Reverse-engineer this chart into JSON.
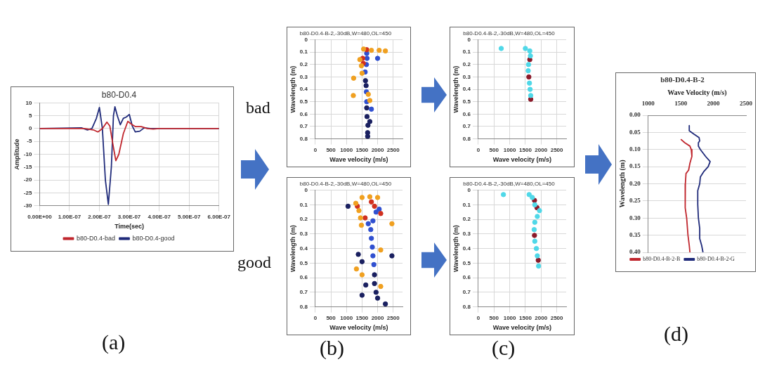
{
  "chart_data": [
    {
      "type": "line",
      "title": "b80-D0.4",
      "xlabel": "Time(sec)",
      "ylabel": "Amplitude",
      "xlim": [
        0,
        6e-07
      ],
      "xticks": [
        {
          "value": 0,
          "label": "0.00E+00"
        },
        {
          "value": 1e-07,
          "label": "1.00E-07"
        },
        {
          "value": 2e-07,
          "label": "2.00E-07"
        },
        {
          "value": 3e-07,
          "label": "3.00E-07"
        },
        {
          "value": 4e-07,
          "label": "4.00E-07"
        },
        {
          "value": 5e-07,
          "label": "5.00E-07"
        },
        {
          "value": 6e-07,
          "label": "6.00E-07"
        }
      ],
      "ylim": [
        -30,
        10
      ],
      "yticks": [
        -30,
        -25,
        -20,
        -15,
        -10,
        -5,
        0,
        5,
        10
      ],
      "grid": true,
      "legend": "bottom",
      "annotations": [
        "(a)"
      ],
      "series": [
        {
          "name": "b80-D0.4-bad",
          "color": "#c0262d",
          "x": [
            0,
            1.5e-07,
            1.8e-07,
            1.95e-07,
            2.1e-07,
            2.25e-07,
            2.35e-07,
            2.45e-07,
            2.55e-07,
            2.65e-07,
            2.8e-07,
            2.95e-07,
            3.1e-07,
            3.2e-07,
            3.4e-07,
            3.6e-07,
            3.8e-07,
            4e-07,
            6e-07
          ],
          "values": [
            0,
            0,
            -0.5,
            -1.3,
            0,
            2.5,
            1,
            -6,
            -12.5,
            -10,
            -2,
            2.8,
            1.5,
            0.8,
            0.8,
            0,
            -0.2,
            0,
            0
          ]
        },
        {
          "name": "b80-D0.4-good",
          "color": "#1f2a7a",
          "x": [
            0,
            1.4e-07,
            1.6e-07,
            1.75e-07,
            1.9e-07,
            2e-07,
            2.1e-07,
            2.2e-07,
            2.3e-07,
            2.4e-07,
            2.47e-07,
            2.52e-07,
            2.6e-07,
            2.7e-07,
            2.8e-07,
            2.9e-07,
            3e-07,
            3.1e-07,
            3.2e-07,
            3.35e-07,
            3.5e-07,
            3.7e-07,
            6e-07
          ],
          "values": [
            0,
            0.3,
            -0.5,
            0,
            4,
            8.2,
            0,
            -20,
            -29.5,
            -15,
            5,
            8.5,
            5,
            1.5,
            4,
            4.5,
            5.5,
            1,
            -1.3,
            -1,
            0.3,
            0,
            0
          ]
        }
      ]
    },
    {
      "type": "scatter",
      "title": "b80-D0.4-B-2,-30dB,W=480,OL=450",
      "xlabel": "Wave velocity (m/s)",
      "ylabel": "Wavelength (m)",
      "xlim": [
        0,
        2800
      ],
      "xticks": [
        0,
        500,
        1000,
        1500,
        2000,
        2500
      ],
      "ylim": [
        0.8,
        0
      ],
      "yticks": [
        0,
        0.1,
        0.2,
        0.3,
        0.4,
        0.5,
        0.6,
        0.7,
        0.8
      ],
      "grid": true,
      "marker": "circle",
      "annotations": [
        "bad"
      ],
      "series": [
        {
          "color": "#f0a020",
          "x": [
            1550,
            1800,
            2050,
            2250,
            1430,
            1480,
            1500,
            1230,
            1220,
            1700,
            1750
          ],
          "values": [
            0.075,
            0.085,
            0.085,
            0.09,
            0.16,
            0.21,
            0.27,
            0.31,
            0.45,
            0.44,
            0.49
          ]
        },
        {
          "color": "#d03020",
          "x": [
            1650,
            1520,
            1540
          ],
          "values": [
            0.08,
            0.15,
            0.19
          ]
        },
        {
          "color": "#3050d0",
          "x": [
            1650,
            1660,
            1640,
            1600,
            1640,
            1650,
            1800,
            2000
          ],
          "values": [
            0.11,
            0.15,
            0.2,
            0.26,
            0.42,
            0.5,
            0.56,
            0.15
          ]
        },
        {
          "color": "#1a2060",
          "x": [
            1610,
            1630,
            1650,
            1660,
            1690,
            1750,
            1680,
            1680
          ],
          "values": [
            0.33,
            0.37,
            0.55,
            0.62,
            0.69,
            0.66,
            0.75,
            0.78
          ]
        }
      ]
    },
    {
      "type": "scatter",
      "title": "b80-D0.4-B-2,-30dB,W=480,OL=450",
      "xlabel": "Wave velocity (m/s)",
      "ylabel": "Wavelength (m)",
      "xlim": [
        0,
        2800
      ],
      "xticks": [
        0,
        500,
        1000,
        1500,
        2000,
        2500
      ],
      "ylim": [
        0.8,
        0
      ],
      "yticks": [
        0,
        0.1,
        0.2,
        0.3,
        0.4,
        0.5,
        0.6,
        0.7,
        0.8
      ],
      "grid": true,
      "marker": "circle",
      "annotations": [
        "good",
        "(b)"
      ],
      "series": [
        {
          "color": "#f0a020",
          "x": [
            1500,
            1750,
            2000,
            1300,
            1400,
            1450,
            1480,
            2460,
            1320,
            1500,
            2100,
            2100
          ],
          "values": [
            0.05,
            0.045,
            0.05,
            0.09,
            0.14,
            0.19,
            0.24,
            0.23,
            0.54,
            0.58,
            0.41,
            0.66
          ]
        },
        {
          "color": "#d03020",
          "x": [
            1350,
            1600,
            1800,
            2100,
            1900
          ],
          "values": [
            0.11,
            0.19,
            0.08,
            0.16,
            0.11
          ]
        },
        {
          "color": "#3050d0",
          "x": [
            1950,
            1850,
            1780,
            1800,
            1830,
            1850,
            1880,
            1700,
            2050
          ],
          "values": [
            0.15,
            0.21,
            0.27,
            0.33,
            0.39,
            0.45,
            0.51,
            0.23,
            0.13
          ]
        },
        {
          "color": "#1a2060",
          "x": [
            1900,
            1900,
            1950,
            2000,
            1500,
            1500,
            1380,
            1050,
            2250,
            2460,
            1620
          ],
          "values": [
            0.58,
            0.64,
            0.7,
            0.74,
            0.49,
            0.72,
            0.44,
            0.11,
            0.78,
            0.45,
            0.65
          ]
        }
      ]
    },
    {
      "type": "scatter",
      "title": "b80-D0.4-B-2,-30dB,W=480,OL=450",
      "xlabel": "Wave velocity (m/s)",
      "ylabel": "Wavelength (m)",
      "xlim": [
        0,
        2800
      ],
      "xticks": [
        0,
        500,
        1000,
        1500,
        2000,
        2500
      ],
      "ylim": [
        0.8,
        0
      ],
      "yticks": [
        0,
        0.1,
        0.2,
        0.3,
        0.4,
        0.5,
        0.6,
        0.7,
        0.8
      ],
      "grid": true,
      "marker": "circle",
      "series": [
        {
          "color": "#50d8e8",
          "x": [
            1500,
            1640,
            1660,
            1600,
            1590,
            1630,
            1650,
            1670,
            730
          ],
          "values": [
            0.07,
            0.09,
            0.13,
            0.2,
            0.25,
            0.35,
            0.4,
            0.45,
            0.07
          ]
        },
        {
          "color": "#8b1a2a",
          "x": [
            1640,
            1610,
            1670
          ],
          "values": [
            0.16,
            0.3,
            0.48
          ]
        }
      ]
    },
    {
      "type": "scatter",
      "title": "b80-D0.4-B-2,-30dB,W=480,OL=450",
      "xlabel": "Wave velocity (m/s)",
      "ylabel": "Wavelength (m)",
      "xlim": [
        0,
        2800
      ],
      "xticks": [
        0,
        500,
        1000,
        1500,
        2000,
        2500
      ],
      "ylim": [
        0.8,
        0
      ],
      "yticks": [
        0,
        0.1,
        0.2,
        0.3,
        0.4,
        0.5,
        0.6,
        0.7,
        0.8
      ],
      "grid": true,
      "marker": "circle",
      "annotations": [
        "(c)"
      ],
      "series": [
        {
          "color": "#50d8e8",
          "x": [
            1620,
            1720,
            1800,
            1950,
            1880,
            1800,
            1780,
            1800,
            1850,
            1880,
            1920,
            800
          ],
          "values": [
            0.03,
            0.05,
            0.1,
            0.14,
            0.18,
            0.22,
            0.27,
            0.35,
            0.4,
            0.45,
            0.52,
            0.03
          ]
        },
        {
          "color": "#8b1a2a",
          "x": [
            1790,
            1870,
            1790,
            1910
          ],
          "values": [
            0.07,
            0.12,
            0.31,
            0.48
          ]
        }
      ]
    },
    {
      "type": "line",
      "title": "b80-D0.4-B-2",
      "xlabel": "Wave Velocity (m/s)",
      "ylabel": "Wavelength (m)",
      "xlim": [
        1000,
        2500
      ],
      "xticks": [
        1000,
        1500,
        2000,
        2500
      ],
      "ylim": [
        0.4,
        0
      ],
      "yticks": [
        {
          "value": 0,
          "label": "0.00"
        },
        0.05,
        {
          "value": 0.1,
          "label": "0.10"
        },
        0.15,
        {
          "value": 0.2,
          "label": "0.20"
        },
        0.25,
        {
          "value": 0.3,
          "label": "0.30"
        },
        0.35,
        {
          "value": 0.4,
          "label": "0.40"
        }
      ],
      "grid": "y",
      "legend": "bottom",
      "annotations": [
        "(d)"
      ],
      "series": [
        {
          "name": "b80-D0.4-B-2-B",
          "color": "#c0262d",
          "x": [
            1500,
            1560,
            1640,
            1660,
            1670,
            1640,
            1620,
            1580,
            1570,
            1565,
            1570,
            1590,
            1610,
            1630,
            1640
          ],
          "values": [
            0.07,
            0.08,
            0.09,
            0.1,
            0.12,
            0.14,
            0.16,
            0.17,
            0.2,
            0.25,
            0.27,
            0.3,
            0.35,
            0.38,
            0.4
          ]
        },
        {
          "name": "b80-D0.4-B-2-G",
          "color": "#1f2a7a",
          "x": [
            1630,
            1630,
            1700,
            1780,
            1790,
            1770,
            1770,
            1800,
            1880,
            1950,
            1920,
            1850,
            1800,
            1790,
            1760,
            1760,
            1770,
            1790,
            1790,
            1820,
            1840
          ],
          "values": [
            0.03,
            0.045,
            0.055,
            0.065,
            0.075,
            0.08,
            0.09,
            0.1,
            0.12,
            0.135,
            0.15,
            0.165,
            0.18,
            0.2,
            0.22,
            0.26,
            0.3,
            0.33,
            0.36,
            0.38,
            0.4
          ]
        }
      ]
    }
  ]
}
